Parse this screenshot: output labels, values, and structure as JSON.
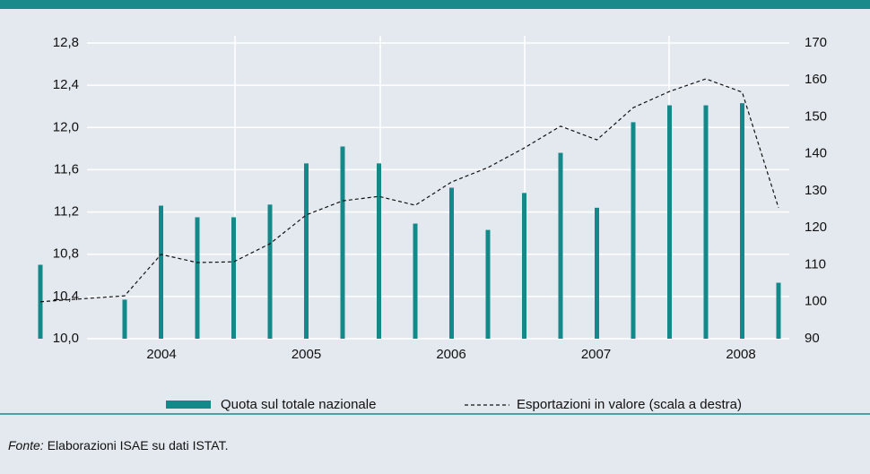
{
  "chart_data": {
    "type": "bar_line",
    "year_labels": [
      "2004",
      "2005",
      "2006",
      "2007",
      "2008"
    ],
    "categories": [
      null,
      null,
      null,
      null,
      null,
      null,
      null,
      null,
      null,
      null,
      null,
      null,
      null,
      null,
      null,
      null,
      null,
      null,
      null,
      null
    ],
    "series": [
      {
        "name": "Quota sul totale nazionale",
        "color": "#14898a",
        "type": "bar",
        "values": [
          10.7,
          10.37,
          11.26,
          11.15,
          11.15,
          11.27,
          11.66,
          11.82,
          11.66,
          11.09,
          11.43,
          11.03,
          11.38,
          11.76,
          11.24,
          12.05,
          12.21,
          12.21,
          12.23,
          10.53
        ]
      },
      {
        "name": "Esportazioni in valore (scala a destra)",
        "color": "#111111",
        "type": "line",
        "axis": "y2",
        "values": [
          100,
          101.6,
          112.8,
          110.6,
          110.8,
          115.7,
          123.5,
          127.3,
          128.5,
          126.1,
          132.4,
          136.3,
          141.6,
          147.5,
          143.8,
          152.5,
          156.9,
          160.3,
          156.7,
          125.4
        ]
      }
    ],
    "ylim": [
      10.0,
      12.8
    ],
    "yticks": [
      {
        "value": 10.0,
        "label": "10,0"
      },
      {
        "value": 10.4,
        "label": "10,4"
      },
      {
        "value": 10.8,
        "label": "10,8"
      },
      {
        "value": 11.2,
        "label": "11,2"
      },
      {
        "value": 11.6,
        "label": "11,6"
      },
      {
        "value": 12.0,
        "label": "12,0"
      },
      {
        "value": 12.4,
        "label": "12,4"
      },
      {
        "value": 12.8,
        "label": "12,8"
      }
    ],
    "y2lim": [
      90,
      170
    ],
    "y2ticks": [
      90,
      100,
      110,
      120,
      130,
      140,
      150,
      160,
      170
    ],
    "grid": true,
    "source_label": "Fonte:",
    "source_text": "Elaborazioni ISAE su dati ISTAT."
  }
}
